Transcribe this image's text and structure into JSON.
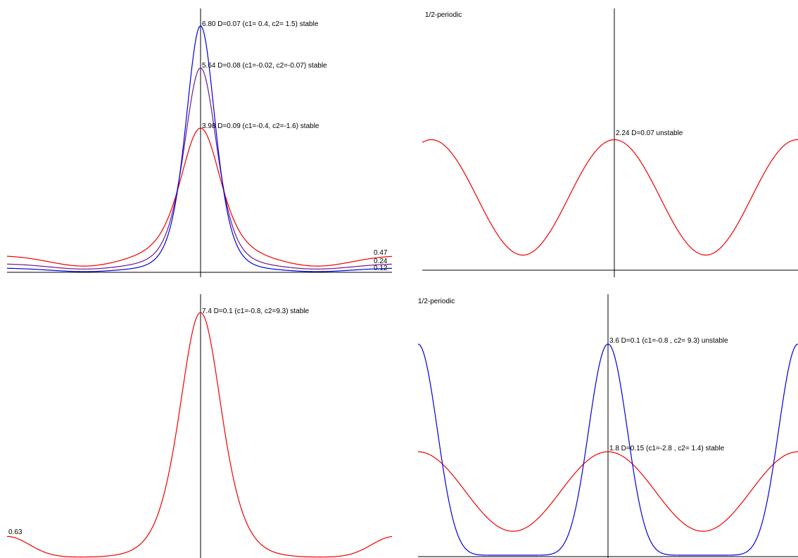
{
  "colors": {
    "red": "#ee0000",
    "blue": "#0000dd",
    "purple": "#6a1a8a",
    "axis": "#000000"
  },
  "chart_data": [
    {
      "type": "line",
      "title": "",
      "annotations": [
        {
          "text": "6.80   D=0.07  (c1= 0.4, c2= 1.5) stable"
        },
        {
          "text": "5.64  D=0.08  (c1=-0.02, c2=-0.07) stable"
        },
        {
          "text": "3.98  D=0.09  (c1=-0.4, c2=-1.6) stable"
        }
      ],
      "edge_labels": [
        "0.47",
        "0.24",
        "0.12"
      ],
      "series": [
        {
          "color": "blue",
          "peak": 6.8,
          "edge": 0.12
        },
        {
          "color": "purple",
          "peak": 5.64,
          "edge": 0.24
        },
        {
          "color": "red",
          "peak": 3.98,
          "edge": 0.47
        }
      ]
    },
    {
      "type": "line",
      "title": "1/2-periodic",
      "annotations": [
        {
          "text": "2.24  D=0.07  unstable"
        }
      ],
      "series": [
        {
          "color": "red",
          "peak": 2.24
        }
      ]
    },
    {
      "type": "line",
      "title": "",
      "annotations": [
        {
          "text": "7.4  D=0.1 (c1=-0.8, c2=9.3)  stable"
        }
      ],
      "edge_labels": [
        "0.63"
      ],
      "series": [
        {
          "color": "red",
          "peak": 7.4,
          "edge": 0.63
        }
      ]
    },
    {
      "type": "line",
      "title": "1/2-periodic",
      "annotations": [
        {
          "text": "3.6  D=0.1 (c1=-0.8 , c2= 9.3) unstable"
        },
        {
          "text": "1.8  D=0.15  (c1=-2.8 , c2= 1.4) stable"
        }
      ],
      "series": [
        {
          "color": "blue",
          "peak": 3.6
        },
        {
          "color": "red",
          "peak": 1.8
        }
      ]
    }
  ]
}
